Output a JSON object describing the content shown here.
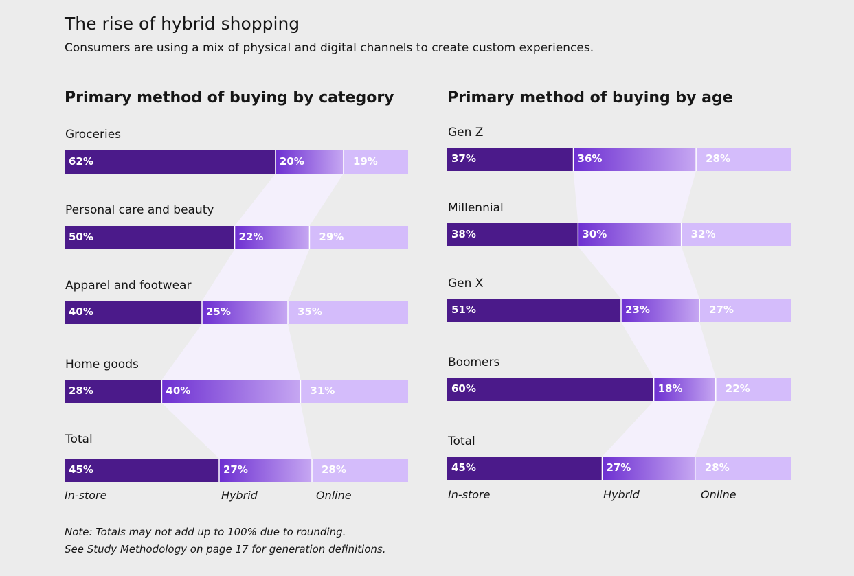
{
  "header": {
    "title": "The rise of hybrid shopping",
    "subtitle": "Consumers are using a mix of physical and digital channels to create custom experiences."
  },
  "chart_data": [
    {
      "type": "bar",
      "stacked": true,
      "orientation": "horizontal",
      "title": "Primary method of buying by category",
      "categories": [
        "Groceries",
        "Personal care and beauty",
        "Apparel and footwear",
        "Home goods",
        "Total"
      ],
      "series": [
        {
          "name": "In-store",
          "values": [
            62,
            50,
            40,
            28,
            45
          ]
        },
        {
          "name": "Hybrid",
          "values": [
            20,
            22,
            25,
            40,
            27
          ]
        },
        {
          "name": "Online",
          "values": [
            19,
            29,
            35,
            31,
            28
          ]
        }
      ],
      "value_suffix": "%"
    },
    {
      "type": "bar",
      "stacked": true,
      "orientation": "horizontal",
      "title": "Primary method of buying by age",
      "categories": [
        "Gen Z",
        "Millennial",
        "Gen X",
        "Boomers",
        "Total"
      ],
      "series": [
        {
          "name": "In-store",
          "values": [
            37,
            38,
            51,
            60,
            45
          ]
        },
        {
          "name": "Hybrid",
          "values": [
            36,
            30,
            23,
            18,
            27
          ]
        },
        {
          "name": "Online",
          "values": [
            28,
            32,
            27,
            22,
            28
          ]
        }
      ],
      "value_suffix": "%"
    }
  ],
  "notes": [
    "Note: Totals may not add up to 100% due to rounding.",
    "See Study Methodology on page 17 for generation definitions."
  ],
  "colors": {
    "in_store": "#4b1a8a",
    "hybrid_start": "#6d2fd1",
    "hybrid_end": "#c6a7f2",
    "online": "#d4bcfb",
    "band": "#f4f0fc",
    "divider": "#ffffff"
  }
}
